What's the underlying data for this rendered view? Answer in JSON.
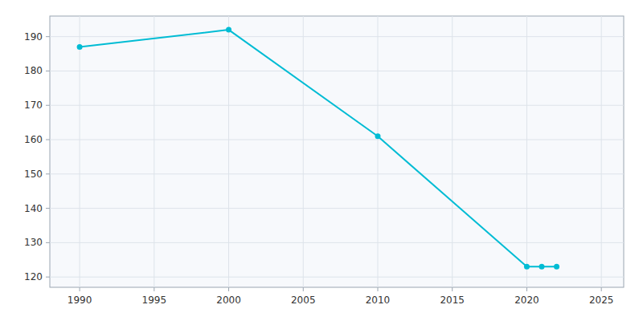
{
  "chart_data": {
    "type": "line",
    "x": [
      1990,
      2000,
      2010,
      2020,
      2021,
      2022
    ],
    "values": [
      187,
      192,
      161,
      123,
      123,
      123
    ],
    "color": "#00BCD4",
    "marker": "circle",
    "xlim": [
      1988,
      2026.5
    ],
    "ylim": [
      117,
      196
    ],
    "xticks": [
      1990,
      1995,
      2000,
      2005,
      2010,
      2015,
      2020,
      2025
    ],
    "yticks": [
      120,
      130,
      140,
      150,
      160,
      170,
      180,
      190
    ],
    "grid": true
  }
}
